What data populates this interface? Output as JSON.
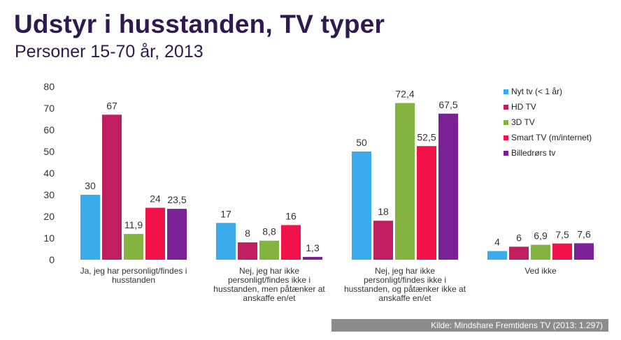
{
  "title": "Udstyr i husstanden, TV typer",
  "subtitle": "Personer 15-70 år, 2013",
  "source": "Kilde: Mindshare Fremtidens TV (2013: 1.297)",
  "chart_data": {
    "type": "bar",
    "ylim": [
      0,
      80
    ],
    "yticks": [
      "0",
      "10",
      "20",
      "30",
      "40",
      "50",
      "60",
      "70",
      "80"
    ],
    "grid": false,
    "legend_position": "right",
    "categories": [
      [
        "Ja, jeg har personligt/findes i",
        "husstanden"
      ],
      [
        "Nej, jeg har ikke",
        "personligt/findes ikke i",
        "husstanden, men påtænker at",
        "anskaffe en/et"
      ],
      [
        "Nej, jeg har ikke",
        "personligt/findes ikke i",
        "husstanden, og påtænker ikke at",
        "anskaffe en/et"
      ],
      [
        "Ved ikke"
      ]
    ],
    "series": [
      {
        "name": "Nyt tv (< 1 år)",
        "color": "#3aabeb",
        "values": [
          30,
          17,
          50,
          4
        ],
        "labels": [
          "30",
          "17",
          "50",
          "4"
        ]
      },
      {
        "name": "HD TV",
        "color": "#c01f5f",
        "values": [
          67,
          8,
          18,
          6
        ],
        "labels": [
          "67",
          "8",
          "18",
          "6"
        ]
      },
      {
        "name": "3D TV",
        "color": "#84b440",
        "values": [
          11.9,
          8.8,
          72.4,
          6.9
        ],
        "labels": [
          "11,9",
          "8,8",
          "72,4",
          "6,9"
        ]
      },
      {
        "name": "Smart TV (m/internet)",
        "color": "#f2124a",
        "values": [
          24,
          16,
          52.5,
          7.5
        ],
        "labels": [
          "24",
          "16",
          "52,5",
          "7,5"
        ]
      },
      {
        "name": "Billedrørs tv",
        "color": "#7b2197",
        "values": [
          23.5,
          1.3,
          67.5,
          7.6
        ],
        "labels": [
          "23,5",
          "1,3",
          "67,5",
          "7,6"
        ]
      }
    ]
  }
}
